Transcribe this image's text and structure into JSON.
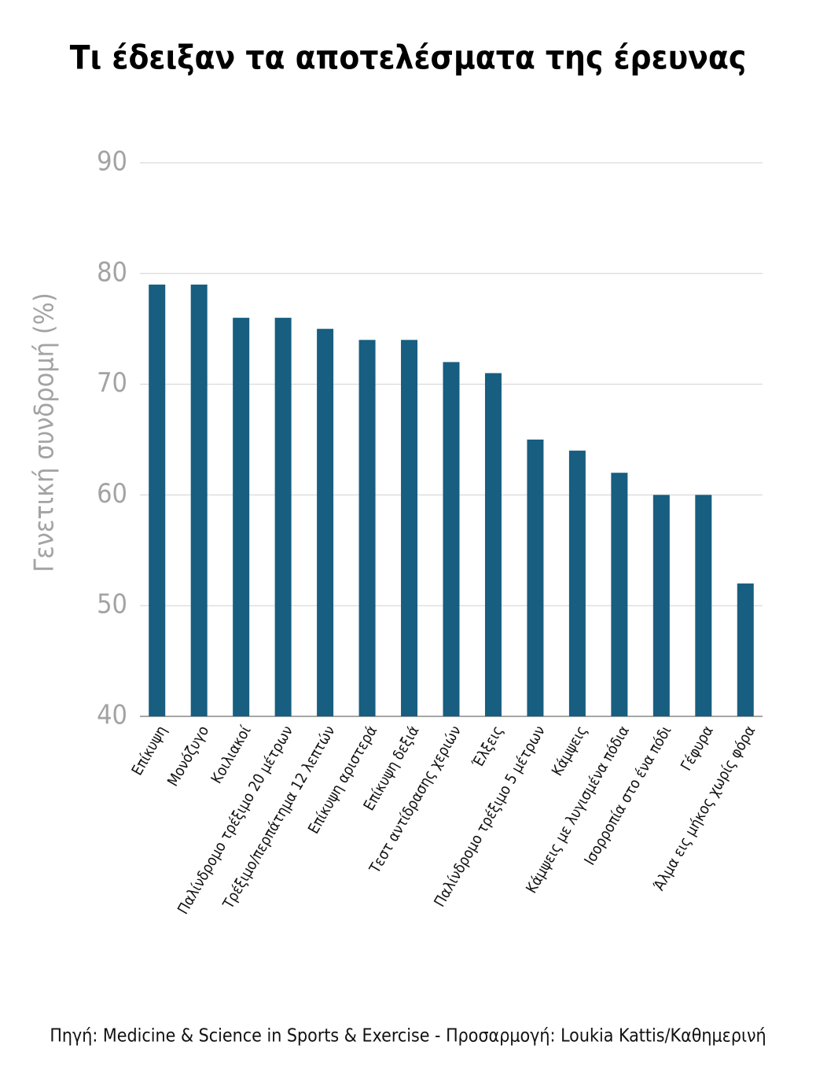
{
  "chart_data": {
    "type": "bar",
    "title": "Τι έδειξαν τα αποτελέσματα της έρευνας",
    "y_label": "Γενετική συνδρομή  (%)",
    "source": "Πηγή: Medicine & Science in Sports & Exercise - Προσαρμογή: Loukia Kattis/Καθημερινή",
    "categories": [
      "Επίκυψη",
      "Μονόζυγο",
      "Κοιλιακοί",
      "Παλίνδρομο τρέξιμο 20 μέτρων",
      "Τρέξιμο/περπάτημα 12 λεπτών",
      "Επίκυψη αριστερά",
      "Επίκυψη δεξιά",
      "Τεστ αντίδρασης χεριών",
      "Έλξεις",
      "Παλίνδρομο τρέξιμο 5 μέτρων",
      "Κάμψεις",
      "Κάμψεις με λυγισμένα πόδια",
      "Ισορροπία στο ένα πόδι",
      "Γέφυρα",
      "Άλμα εις μήκος χωρίς φόρα"
    ],
    "values": [
      79,
      79,
      76,
      76,
      75,
      74,
      74,
      72,
      71,
      65,
      64,
      62,
      60,
      60,
      52
    ],
    "color": "#175e80",
    "ylim": [
      40,
      90
    ],
    "yticks": [
      40,
      50,
      60,
      70,
      80,
      90
    ],
    "grid": true
  }
}
